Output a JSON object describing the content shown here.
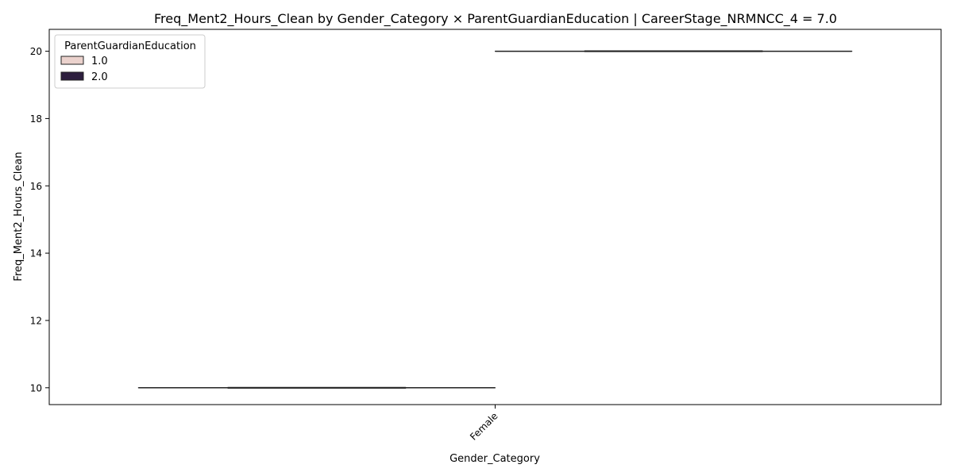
{
  "chart_data": {
    "type": "box",
    "title": "Freq_Ment2_Hours_Clean by Gender_Category × ParentGuardianEducation | CareerStage_NRMNCC_4 = 7.0",
    "xlabel": "Gender_Category",
    "ylabel": "Freq_Ment2_Hours_Clean",
    "categories": [
      "Female"
    ],
    "ylim": [
      9.5,
      20.65
    ],
    "yticks": [
      10,
      12,
      14,
      16,
      18,
      20
    ],
    "grid": false,
    "legend": {
      "title": "ParentGuardianEducation",
      "placement": "top-left",
      "entries": [
        "1.0",
        "2.0"
      ]
    },
    "series": [
      {
        "name": "1.0",
        "color": "#ebd2cd",
        "boxes": [
          {
            "category": "Female",
            "min": 10,
            "q1": 10,
            "median": 10,
            "q3": 10,
            "max": 10
          }
        ]
      },
      {
        "name": "2.0",
        "color": "#2d1e3e",
        "boxes": [
          {
            "category": "Female",
            "min": 20,
            "q1": 20,
            "median": 20,
            "q3": 20,
            "max": 20
          }
        ]
      }
    ]
  }
}
